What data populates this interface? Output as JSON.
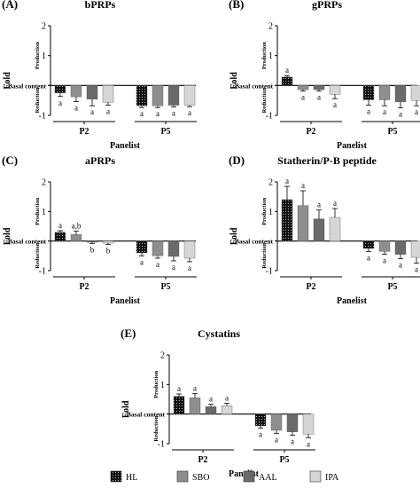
{
  "legend": {
    "items": [
      {
        "name": "HL",
        "fill": "dots"
      },
      {
        "name": "SBO",
        "fill": "#8e8e8e"
      },
      {
        "name": "AAL",
        "fill": "#6a6a6a"
      },
      {
        "name": "IPA",
        "fill": "#d6d6d6"
      }
    ]
  },
  "chart_data": [
    {
      "panel_label": "(A)",
      "title": "bPRPs",
      "type": "bar",
      "xlabel": "Panelist",
      "ylabel": "Fold",
      "categories": [
        "P2",
        "P5"
      ],
      "ylim": [
        -1,
        2
      ],
      "yticks": [
        -1,
        1,
        2
      ],
      "baseline_label": "Basal content",
      "upper_label": "Production",
      "lower_label": "Reduction",
      "series": [
        {
          "name": "HL",
          "values": [
            -0.25,
            -0.68
          ],
          "errors": [
            0.12,
            0.06
          ],
          "letters": [
            "a",
            "a"
          ]
        },
        {
          "name": "SBO",
          "values": [
            -0.38,
            -0.68
          ],
          "errors": [
            0.16,
            0.06
          ],
          "letters": [
            "a",
            "a"
          ]
        },
        {
          "name": "AAL",
          "values": [
            -0.46,
            -0.66
          ],
          "errors": [
            0.22,
            0.06
          ],
          "letters": [
            "a",
            "a"
          ]
        },
        {
          "name": "IPA",
          "values": [
            -0.56,
            -0.66
          ],
          "errors": [
            0.1,
            0.05
          ],
          "letters": [
            "a",
            "a"
          ]
        }
      ]
    },
    {
      "panel_label": "(B)",
      "title": "gPRPs",
      "type": "bar",
      "xlabel": "Panelist",
      "ylabel": "Fold",
      "categories": [
        "P2",
        "P5"
      ],
      "ylim": [
        -1,
        2
      ],
      "yticks": [
        -1,
        1,
        2
      ],
      "baseline_label": "Basal content",
      "upper_label": "Production",
      "lower_label": "Reduction",
      "series": [
        {
          "name": "HL",
          "values": [
            0.28,
            -0.48
          ],
          "errors": [
            0.05,
            0.18
          ],
          "letters": [
            "a",
            "a"
          ]
        },
        {
          "name": "SBO",
          "values": [
            -0.14,
            -0.48
          ],
          "errors": [
            0.05,
            0.2
          ],
          "letters": [
            "a",
            "a"
          ]
        },
        {
          "name": "AAL",
          "values": [
            -0.14,
            -0.55
          ],
          "errors": [
            0.05,
            0.2
          ],
          "letters": [
            "a",
            "a"
          ]
        },
        {
          "name": "IPA",
          "values": [
            -0.3,
            -0.5
          ],
          "errors": [
            0.14,
            0.18
          ],
          "letters": [
            "a",
            "a"
          ]
        }
      ]
    },
    {
      "panel_label": "(C)",
      "title": "aPRPs",
      "type": "bar",
      "xlabel": "Panelist",
      "ylabel": "Fold",
      "categories": [
        "P2",
        "P5"
      ],
      "ylim": [
        -1,
        2
      ],
      "yticks": [
        -1,
        1,
        2
      ],
      "baseline_label": "Basal content",
      "upper_label": "Production",
      "lower_label": "Reduction",
      "series": [
        {
          "name": "HL",
          "values": [
            0.3,
            -0.4
          ],
          "errors": [
            0.05,
            0.1
          ],
          "letters": [
            "a",
            "a"
          ]
        },
        {
          "name": "SBO",
          "values": [
            0.22,
            -0.5
          ],
          "errors": [
            0.12,
            0.08
          ],
          "letters": [
            "a,b",
            "a"
          ]
        },
        {
          "name": "AAL",
          "values": [
            -0.04,
            -0.52
          ],
          "errors": [
            0.04,
            0.15
          ],
          "letters": [
            "b",
            "a"
          ]
        },
        {
          "name": "IPA",
          "values": [
            -0.07,
            -0.58
          ],
          "errors": [
            0.05,
            0.12
          ],
          "letters": [
            "b",
            "a"
          ]
        }
      ]
    },
    {
      "panel_label": "(D)",
      "title": "Statherin/P-B peptide",
      "type": "bar",
      "xlabel": "Panelist",
      "ylabel": "Fold",
      "categories": [
        "P2",
        "P5"
      ],
      "ylim": [
        -1,
        2
      ],
      "yticks": [
        -1,
        1,
        2
      ],
      "baseline_label": "Basal content",
      "upper_label": "Production",
      "lower_label": "Reduction",
      "series": [
        {
          "name": "HL",
          "values": [
            1.4,
            -0.25
          ],
          "errors": [
            0.45,
            0.1
          ],
          "letters": [
            "a",
            "a"
          ]
        },
        {
          "name": "SBO",
          "values": [
            1.2,
            -0.35
          ],
          "errors": [
            0.5,
            0.1
          ],
          "letters": [
            "a",
            "a"
          ]
        },
        {
          "name": "AAL",
          "values": [
            0.75,
            -0.45
          ],
          "errors": [
            0.3,
            0.15
          ],
          "letters": [
            "a",
            "a"
          ]
        },
        {
          "name": "IPA",
          "values": [
            0.8,
            -0.55
          ],
          "errors": [
            0.3,
            0.2
          ],
          "letters": [
            "a",
            "a"
          ]
        }
      ]
    },
    {
      "panel_label": "(E)",
      "title": "Cystatins",
      "type": "bar",
      "xlabel": "Panelist",
      "ylabel": "Fold",
      "categories": [
        "P2",
        "P5"
      ],
      "ylim": [
        -1,
        2
      ],
      "yticks": [
        -1,
        1,
        2
      ],
      "baseline_label": "Basal content",
      "upper_label": "Production",
      "lower_label": "Reduction",
      "series": [
        {
          "name": "HL",
          "values": [
            0.6,
            -0.4
          ],
          "errors": [
            0.08,
            0.08
          ],
          "letters": [
            "a",
            "a"
          ]
        },
        {
          "name": "SBO",
          "values": [
            0.55,
            -0.55
          ],
          "errors": [
            0.15,
            0.1
          ],
          "letters": [
            "a",
            "a"
          ]
        },
        {
          "name": "AAL",
          "values": [
            0.25,
            -0.6
          ],
          "errors": [
            0.08,
            0.12
          ],
          "letters": [
            "a",
            "a"
          ]
        },
        {
          "name": "IPA",
          "values": [
            0.28,
            -0.68
          ],
          "errors": [
            0.08,
            0.12
          ],
          "letters": [
            "a",
            "a"
          ]
        }
      ]
    }
  ]
}
